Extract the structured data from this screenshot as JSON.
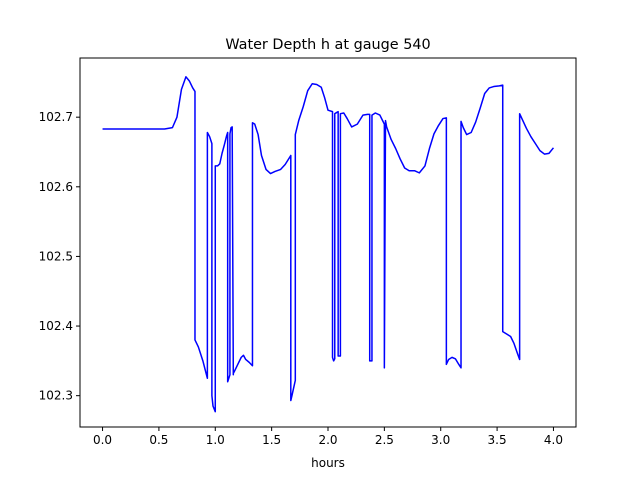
{
  "chart_data": {
    "type": "line",
    "title": "Water Depth h at gauge 540",
    "xlabel": "hours",
    "ylabel": "",
    "xlim": [
      -0.2,
      4.2
    ],
    "ylim": [
      102.255,
      102.785
    ],
    "xticks": [
      0.0,
      0.5,
      1.0,
      1.5,
      2.0,
      2.5,
      3.0,
      3.5,
      4.0
    ],
    "xtick_labels": [
      "0.0",
      "0.5",
      "1.0",
      "1.5",
      "2.0",
      "2.5",
      "3.0",
      "3.5",
      "4.0"
    ],
    "yticks": [
      102.3,
      102.4,
      102.5,
      102.6,
      102.7
    ],
    "ytick_labels": [
      "102.3",
      "102.4",
      "102.5",
      "102.6",
      "102.7"
    ],
    "grid": false,
    "legend": "none",
    "series": [
      {
        "color": "#0000ff",
        "x": [
          0.0,
          0.3,
          0.55,
          0.62,
          0.66,
          0.7,
          0.74,
          0.77,
          0.8,
          0.82,
          0.82,
          0.85,
          0.89,
          0.93,
          0.93,
          0.95,
          0.97,
          0.97,
          0.98,
          1.0,
          1.0,
          1.02,
          1.04,
          1.06,
          1.08,
          1.1,
          1.11,
          1.11,
          1.12,
          1.13,
          1.13,
          1.14,
          1.15,
          1.16,
          1.16,
          1.17,
          1.2,
          1.23,
          1.25,
          1.27,
          1.3,
          1.33,
          1.33,
          1.35,
          1.38,
          1.41,
          1.45,
          1.49,
          1.53,
          1.58,
          1.62,
          1.67,
          1.67,
          1.68,
          1.71,
          1.71,
          1.74,
          1.78,
          1.82,
          1.86,
          1.9,
          1.94,
          1.97,
          2.0,
          2.04,
          2.04,
          2.05,
          2.06,
          2.06,
          2.08,
          2.09,
          2.09,
          2.1,
          2.11,
          2.11,
          2.14,
          2.17,
          2.21,
          2.26,
          2.31,
          2.35,
          2.37,
          2.37,
          2.39,
          2.39,
          2.42,
          2.46,
          2.5,
          2.5,
          2.51,
          2.52,
          2.56,
          2.6,
          2.64,
          2.68,
          2.72,
          2.77,
          2.81,
          2.86,
          2.9,
          2.94,
          2.98,
          3.02,
          3.05,
          3.05,
          3.07,
          3.1,
          3.13,
          3.16,
          3.18,
          3.18,
          3.2,
          3.23,
          3.27,
          3.31,
          3.35,
          3.39,
          3.43,
          3.47,
          3.52,
          3.55,
          3.55,
          3.59,
          3.62,
          3.65,
          3.68,
          3.7,
          3.7,
          3.72,
          3.76,
          3.8,
          3.84,
          3.88,
          3.92,
          3.96,
          4.0
        ],
        "y": [
          102.683,
          102.683,
          102.683,
          102.685,
          102.7,
          102.74,
          102.758,
          102.752,
          102.742,
          102.737,
          102.38,
          102.37,
          102.35,
          102.325,
          102.678,
          102.672,
          102.662,
          102.3,
          102.285,
          102.277,
          102.63,
          102.63,
          102.633,
          102.648,
          102.66,
          102.673,
          102.678,
          102.32,
          102.325,
          102.33,
          102.676,
          102.685,
          102.686,
          102.33,
          102.332,
          102.335,
          102.345,
          102.355,
          102.358,
          102.352,
          102.348,
          102.343,
          102.692,
          102.69,
          102.675,
          102.645,
          102.625,
          102.619,
          102.622,
          102.625,
          102.632,
          102.645,
          102.293,
          102.3,
          102.322,
          102.675,
          102.695,
          102.715,
          102.738,
          102.748,
          102.747,
          102.743,
          102.728,
          102.71,
          102.708,
          102.355,
          102.35,
          102.353,
          102.705,
          102.707,
          102.708,
          102.357,
          102.357,
          102.357,
          102.705,
          102.706,
          102.698,
          102.686,
          102.69,
          102.703,
          102.704,
          102.704,
          102.35,
          102.35,
          102.703,
          102.706,
          102.703,
          102.69,
          102.34,
          102.695,
          102.686,
          102.668,
          102.655,
          102.64,
          102.627,
          102.623,
          102.623,
          102.62,
          102.63,
          102.655,
          102.676,
          102.688,
          102.698,
          102.699,
          102.345,
          102.352,
          102.355,
          102.353,
          102.345,
          102.34,
          102.694,
          102.685,
          102.675,
          102.678,
          102.693,
          102.713,
          102.734,
          102.742,
          102.744,
          102.745,
          102.746,
          102.392,
          102.388,
          102.385,
          102.375,
          102.361,
          102.352,
          102.705,
          102.698,
          102.684,
          102.672,
          102.662,
          102.652,
          102.647,
          102.648,
          102.656
        ]
      }
    ]
  }
}
